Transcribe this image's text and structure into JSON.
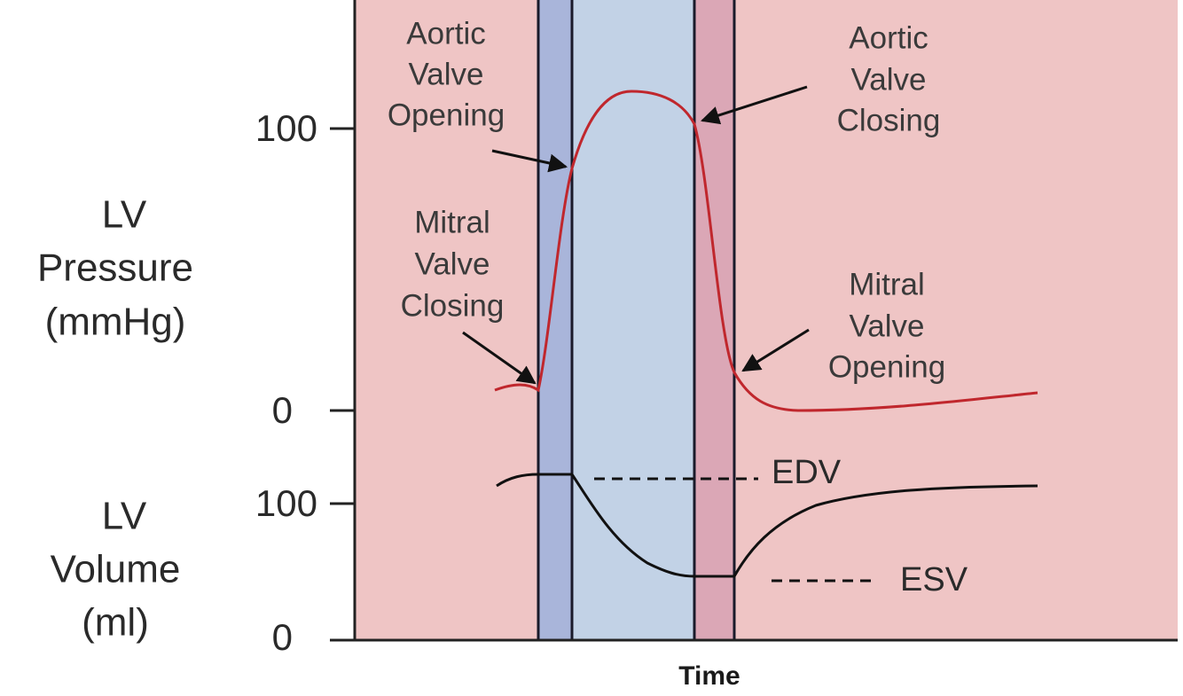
{
  "y_axes": {
    "pressure": {
      "label": [
        "LV",
        "Pressure",
        "(mmHg)"
      ],
      "ticks": [
        "100",
        "0"
      ]
    },
    "volume": {
      "label": [
        "LV",
        "Volume",
        "(ml)"
      ],
      "ticks": [
        "100",
        "0"
      ]
    }
  },
  "x_axis_label": "Time",
  "annotations": {
    "aortic_valve_opening": [
      "Aortic",
      "Valve",
      "Opening"
    ],
    "aortic_valve_closing": [
      "Aortic",
      "Valve",
      "Closing"
    ],
    "mitral_valve_closing": [
      "Mitral",
      "Valve",
      "Closing"
    ],
    "mitral_valve_opening": [
      "Mitral",
      "Valve",
      "Opening"
    ]
  },
  "markers": {
    "edv": "EDV",
    "esv": "ESV"
  }
}
